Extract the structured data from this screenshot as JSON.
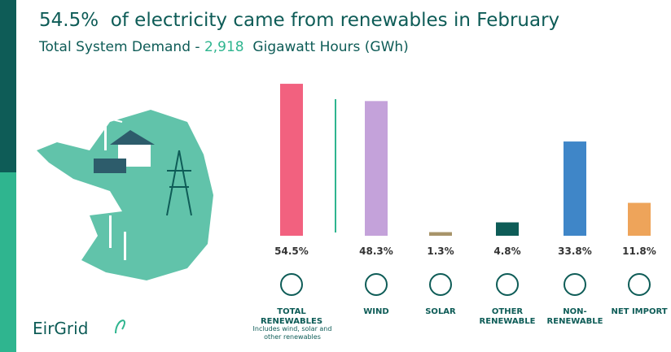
{
  "chart_data": {
    "type": "bar",
    "title": "54.5%  of electricity came from renewables in February",
    "subtitle": {
      "prefix": "Total System Demand - ",
      "demand": "2,918",
      "unit": "  Gigawatt Hours (GWh)"
    },
    "categories": [
      "TOTAL RENEWABLES",
      "WIND",
      "SOLAR",
      "OTHER RENEWABLE",
      "NON-RENEWABLE",
      "NET IMPORT"
    ],
    "values": [
      54.5,
      48.3,
      1.3,
      4.8,
      33.8,
      11.8
    ],
    "value_labels": [
      "54.5%",
      "48.3%",
      "1.3%",
      "4.8%",
      "33.8%",
      "11.8%"
    ],
    "colors": [
      "#f2617f",
      "#c4a2da",
      "#a8946a",
      "#0e5c57",
      "#3f86c8",
      "#eea45a"
    ],
    "note": "Includes wind, solar and other renewables",
    "logo": "EirGrid"
  }
}
